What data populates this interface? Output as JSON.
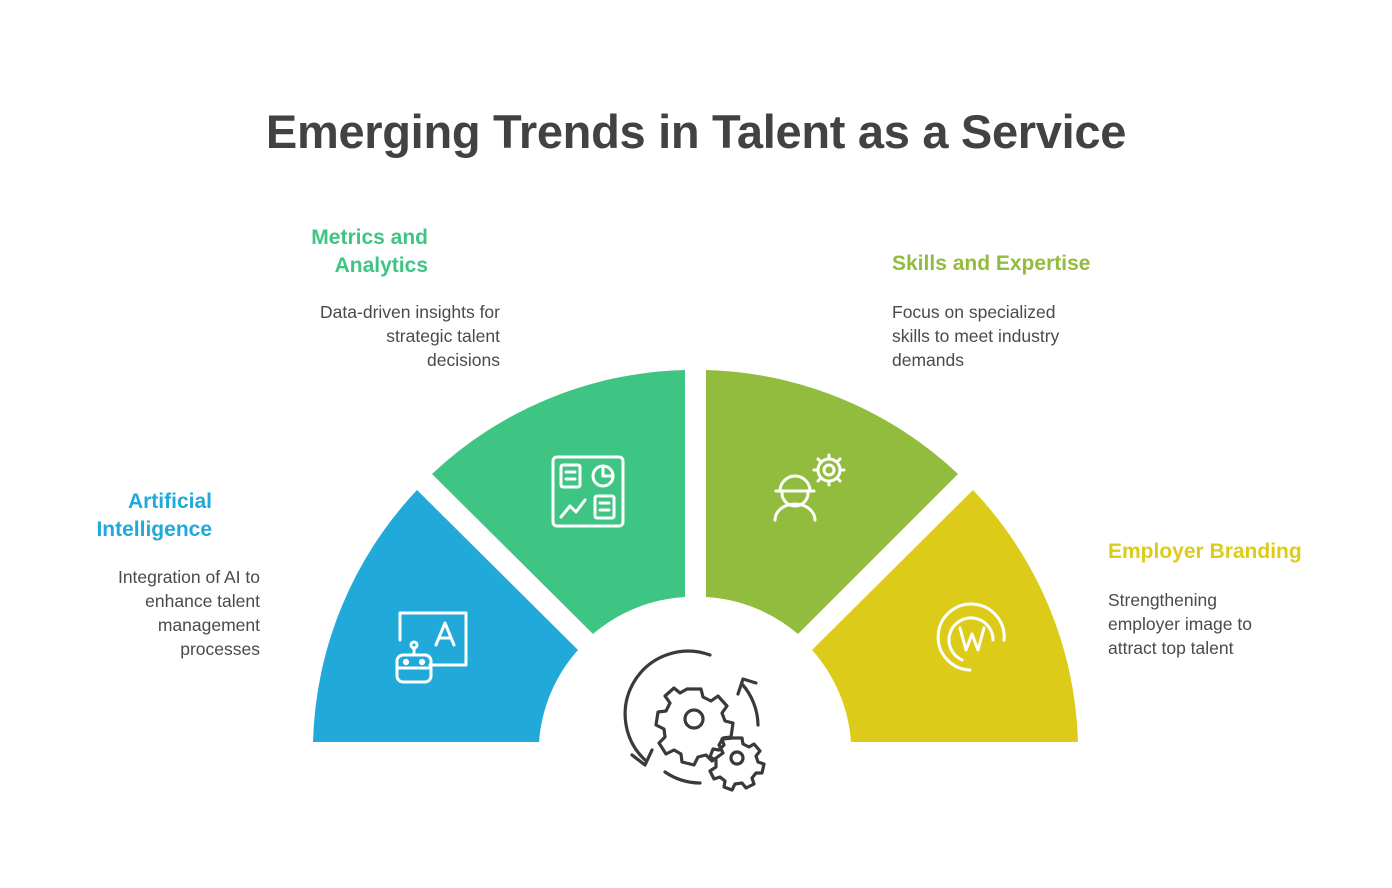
{
  "title": "Emerging Trends in Talent as a Service",
  "segments": [
    {
      "heading_line1": "Artificial",
      "heading_line2": "Intelligence",
      "description_lines": [
        "Integration of AI to",
        "enhance talent",
        "management",
        "processes"
      ],
      "color": "#21A9DA",
      "icon": "ai-robot-icon"
    },
    {
      "heading_line1": "Metrics and",
      "heading_line2": "Analytics",
      "description_lines": [
        "Data-driven insights for",
        "strategic talent",
        "decisions"
      ],
      "color": "#3EC583",
      "icon": "dashboard-chart-icon"
    },
    {
      "heading_line1": "Skills and Expertise",
      "description_lines": [
        "Focus on specialized",
        "skills to meet industry",
        "demands"
      ],
      "color": "#92BC3D",
      "icon": "worker-gear-icon"
    },
    {
      "heading_line1": "Employer Branding",
      "description_lines": [
        "Strengthening",
        "employer image to",
        "attract top talent"
      ],
      "color": "#DDCB1A",
      "icon": "brand-logo-icon"
    }
  ],
  "center_icon": "gears-cycle-icon"
}
